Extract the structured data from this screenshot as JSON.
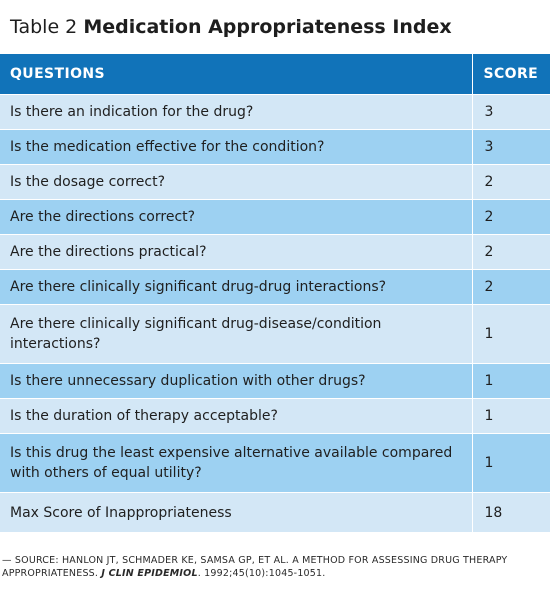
{
  "title": {
    "prefix": "Table 2",
    "name": "Medication Appropriateness Index"
  },
  "table": {
    "headers": {
      "questions": "QUESTIONS",
      "score": "SCORE"
    },
    "rows": [
      {
        "question": "Is there an indication for the drug?",
        "score": "3"
      },
      {
        "question": "Is the medication effective for the condition?",
        "score": "3"
      },
      {
        "question": "Is the dosage correct?",
        "score": "2"
      },
      {
        "question": "Are the directions correct?",
        "score": "2"
      },
      {
        "question": "Are the directions practical?",
        "score": "2"
      },
      {
        "question": "Are there clinically significant drug-drug interactions?",
        "score": "2"
      },
      {
        "question": "Are there clinically significant drug-disease/condition interactions?",
        "score": "1"
      },
      {
        "question": "Is there unnecessary duplication with other drugs?",
        "score": "1"
      },
      {
        "question": "Is the duration of therapy acceptable?",
        "score": "1"
      },
      {
        "question": "Is this drug the least expensive alternative available compared with others of equal utility?",
        "score": "1"
      }
    ],
    "total": {
      "label": "Max Score of Inappropriateness",
      "score": "18"
    }
  },
  "source": {
    "before": "— SOURCE: HANLON JT, SCHMADER KE, SAMSA GP, ET AL. A METHOD FOR ASSESSING DRUG THERAPY APPROPRIATENESS.",
    "journal": "J CLIN EPIDEMIOL",
    "after": ". 1992;45(10):1045-1051."
  },
  "colors": {
    "header": "#1173b9",
    "row_light": "#d3e7f6",
    "row_dark": "#9dd1f2"
  }
}
